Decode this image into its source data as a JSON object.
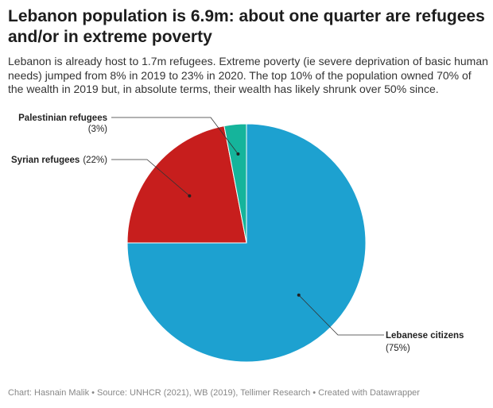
{
  "title": "Lebanon population is 6.9m: about one quarter are refugees and/or in extreme poverty",
  "subtitle": "Lebanon is already host to 1.7m refugees. Extreme poverty (ie severe deprivation of basic human needs) jumped from 8% in 2019 to 23% in 2020. The top 10% of the population owned 70% of the wealth in 2019 but, in absolute terms, their wealth has likely shrunk over 50% since.",
  "footer": "Chart: Hasnain Malik • Source: UNHCR (2021), WB (2019), Tellimer Research • Created with Datawrapper",
  "chart_data": {
    "type": "pie",
    "title": "Lebanon population is 6.9m: about one quarter are refugees and/or in extreme poverty",
    "slices": [
      {
        "name": "Lebanese citizens",
        "value": 75,
        "label": "(75%)",
        "color": "#1da1d0"
      },
      {
        "name": "Syrian refugees",
        "value": 22,
        "label": "(22%)",
        "color": "#c71e1d"
      },
      {
        "name": "Palestinian refugees",
        "value": 3,
        "label": "(3%)",
        "color": "#15b49b"
      }
    ]
  }
}
